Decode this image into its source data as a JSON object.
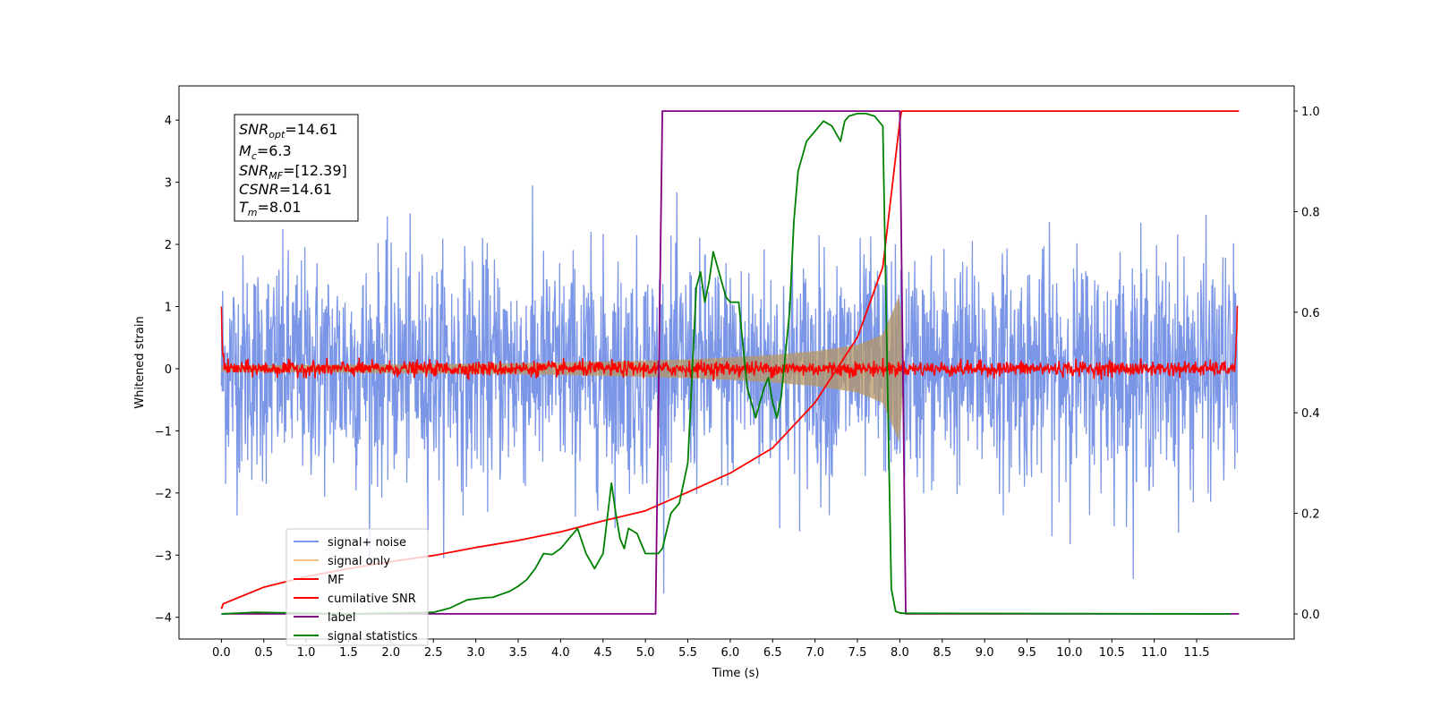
{
  "chart_data": {
    "type": "line",
    "xlabel": "Time (s)",
    "ylabel": "Whitened strain",
    "xlim": [
      -0.5,
      12.65
    ],
    "ylim": [
      -4.35,
      4.55
    ],
    "y2lim": [
      -0.05,
      1.05
    ],
    "x_ticks": [
      "0.0",
      "0.5",
      "1.0",
      "1.5",
      "2.0",
      "2.5",
      "3.0",
      "3.5",
      "4.0",
      "4.5",
      "5.0",
      "5.5",
      "6.0",
      "6.5",
      "7.0",
      "7.5",
      "8.0",
      "8.5",
      "9.0",
      "9.5",
      "10.0",
      "10.5",
      "11.0",
      "11.5"
    ],
    "y_ticks": [
      "4",
      "3",
      "2",
      "1",
      "0",
      "−1",
      "−2",
      "−3",
      "−4"
    ],
    "y2_ticks": [
      "1.0",
      "0.8",
      "0.6",
      "0.4",
      "0.2",
      "0.0"
    ],
    "legend_position": "lower-left",
    "grid": false,
    "annotation": {
      "snr_opt": "14.61",
      "mc": "6.3",
      "snr_mf": "[12.39]",
      "csnr": "14.61",
      "tm": "8.01"
    },
    "series": [
      {
        "name": "signal+ noise",
        "axis": "left",
        "color": "#7b96e6",
        "kind": "noise",
        "amplitude_std": 0.9,
        "x_range": [
          0.0,
          11.98
        ]
      },
      {
        "name": "signal only",
        "axis": "left",
        "color": "#f7c27f",
        "kind": "chirp",
        "x": [
          0,
          1,
          2,
          3,
          4,
          5,
          5.5,
          6,
          6.5,
          7,
          7.5,
          7.8,
          8.0,
          8.05
        ],
        "envelope": [
          0.05,
          0.06,
          0.07,
          0.08,
          0.1,
          0.13,
          0.15,
          0.18,
          0.22,
          0.28,
          0.38,
          0.55,
          1.2,
          0.0
        ]
      },
      {
        "name": "MF",
        "axis": "left",
        "color": "#ff0000",
        "kind": "noise",
        "amplitude_std": 0.06,
        "x_range": [
          0.0,
          11.98
        ],
        "edge_values": [
          1.0,
          1.0
        ]
      },
      {
        "name": "cumilative SNR",
        "axis": "right",
        "color": "#ff0000",
        "x": [
          0,
          0.02,
          0.5,
          1,
          1.5,
          2,
          2.5,
          3,
          3.5,
          4,
          4.5,
          5,
          5.5,
          6,
          6.5,
          7,
          7.5,
          7.8,
          8.0,
          8.02,
          12.0
        ],
        "values": [
          0.01,
          0.02,
          0.053,
          0.074,
          0.09,
          0.104,
          0.116,
          0.132,
          0.146,
          0.163,
          0.185,
          0.205,
          0.242,
          0.28,
          0.33,
          0.42,
          0.55,
          0.69,
          0.98,
          1.0,
          1.0
        ]
      },
      {
        "name": "label",
        "axis": "right",
        "color": "#800080",
        "x": [
          0,
          5.12,
          5.2,
          8.0,
          8.07,
          12.0
        ],
        "values": [
          0,
          0,
          1,
          1,
          0,
          0
        ]
      },
      {
        "name": "signal statistics",
        "axis": "right",
        "color": "#008000",
        "x": [
          0,
          0.4,
          1.5,
          2.5,
          2.7,
          2.9,
          3.1,
          3.2,
          3.4,
          3.5,
          3.6,
          3.7,
          3.8,
          3.9,
          4.0,
          4.1,
          4.2,
          4.3,
          4.4,
          4.5,
          4.6,
          4.65,
          4.7,
          4.75,
          4.8,
          4.9,
          5.0,
          5.1,
          5.15,
          5.2,
          5.3,
          5.4,
          5.5,
          5.6,
          5.65,
          5.7,
          5.75,
          5.8,
          5.85,
          5.9,
          5.95,
          6.0,
          6.1,
          6.2,
          6.3,
          6.4,
          6.45,
          6.5,
          6.55,
          6.6,
          6.7,
          6.75,
          6.8,
          6.9,
          7.0,
          7.1,
          7.2,
          7.3,
          7.35,
          7.4,
          7.5,
          7.6,
          7.7,
          7.8,
          7.85,
          7.9,
          7.95,
          8.0,
          8.05,
          8.1,
          11.9
        ],
        "values": [
          0,
          0.003,
          0,
          0.003,
          0.012,
          0.028,
          0.032,
          0.033,
          0.045,
          0.055,
          0.068,
          0.09,
          0.12,
          0.118,
          0.13,
          0.15,
          0.17,
          0.12,
          0.09,
          0.12,
          0.26,
          0.2,
          0.15,
          0.13,
          0.17,
          0.16,
          0.12,
          0.12,
          0.12,
          0.13,
          0.2,
          0.22,
          0.3,
          0.65,
          0.68,
          0.62,
          0.66,
          0.72,
          0.69,
          0.66,
          0.63,
          0.62,
          0.62,
          0.45,
          0.39,
          0.45,
          0.47,
          0.42,
          0.39,
          0.43,
          0.6,
          0.78,
          0.88,
          0.94,
          0.96,
          0.98,
          0.97,
          0.94,
          0.98,
          0.99,
          0.995,
          0.995,
          0.99,
          0.97,
          0.5,
          0.05,
          0.005,
          0.002,
          0.001,
          0.001,
          0
        ]
      }
    ]
  }
}
